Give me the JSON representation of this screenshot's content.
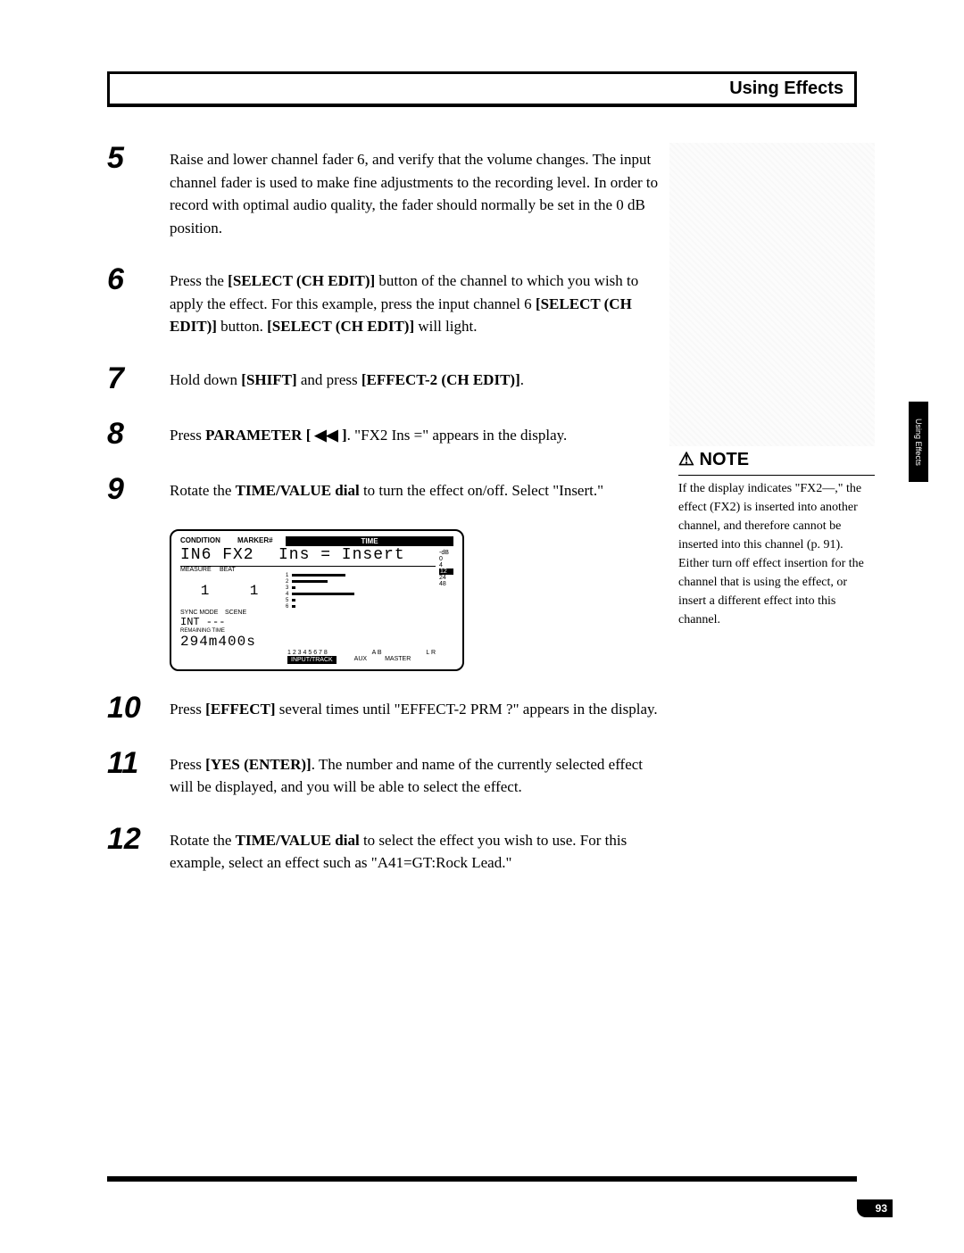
{
  "header": {
    "title": "Using Effects"
  },
  "side_tab": "Using Effects",
  "steps": [
    {
      "num": "5",
      "body": "Raise and lower channel fader 6, and verify that the volume changes. The input channel fader is used to make fine adjustments to the recording level. In order to record with optimal audio quality, the fader should normally be set in the 0 dB position."
    },
    {
      "num": "6",
      "body": "Press the <b>[SELECT (CH EDIT)]</b> button of the channel to which you wish to apply the effect. For this example, press the input channel 6 <b>[SELECT (CH EDIT)]</b> button. <b>[SELECT (CH EDIT)]</b> will light."
    },
    {
      "num": "7",
      "body": "Hold down <b>[SHIFT]</b> and press <b>[EFFECT-2 (CH EDIT)]</b>."
    },
    {
      "num": "8",
      "body": "Press <b>PARAMETER [ ◀◀ ]</b>. \"FX2 Ins =\" appears in the display."
    },
    {
      "num": "9",
      "body": "Rotate the <b>TIME/VALUE dial</b> to turn the effect on/off. Select \"Insert.\""
    },
    {
      "num": "10",
      "body": "Press <b>[EFFECT]</b> several times until \"EFFECT-2 PRM ?\" appears in the display."
    },
    {
      "num": "11",
      "body": "Press <b>[YES (ENTER)]</b>. The number and name of the currently selected effect will be displayed, and you will be able to select the effect."
    },
    {
      "num": "12",
      "body": "Rotate the <b>TIME/VALUE dial</b> to select the effect you wish to use. For this example, select an effect such as \"A41=GT:Rock Lead.\""
    }
  ],
  "lcd": {
    "top": {
      "condition": "CONDITION",
      "marker": "MARKER#",
      "time": "TIME"
    },
    "line1_cond": "IN6 FX2",
    "line1_rest": "Ins = Insert",
    "sub_measure": "MEASURE",
    "sub_beat": "BEAT",
    "nums": [
      "1",
      "1"
    ],
    "sync": "SYNC MODE",
    "scene": "SCENE",
    "int": "INT ---",
    "remaining_label": "REMAINING TIME",
    "remaining": "294m400s",
    "track_nums": "1 2 3 4 5 6 7 8",
    "ab": "A B",
    "lr": "L R",
    "input_track": "INPUT/TRACK",
    "aux": "AUX",
    "master": "MASTER",
    "scale": [
      "-dB",
      "0",
      "4",
      "12",
      "24",
      "48"
    ]
  },
  "note": {
    "label": "NOTE",
    "body": "If the display indicates \"FX2—,\" the effect (FX2) is inserted into another channel, and therefore cannot be inserted into this channel (p. 91). Either turn off effect insertion for the channel that is using the effect, or insert a different effect into this channel."
  },
  "page_num": "93",
  "colors": {
    "text": "#000000",
    "bg": "#ffffff",
    "ghost": "#c8c8c8"
  }
}
